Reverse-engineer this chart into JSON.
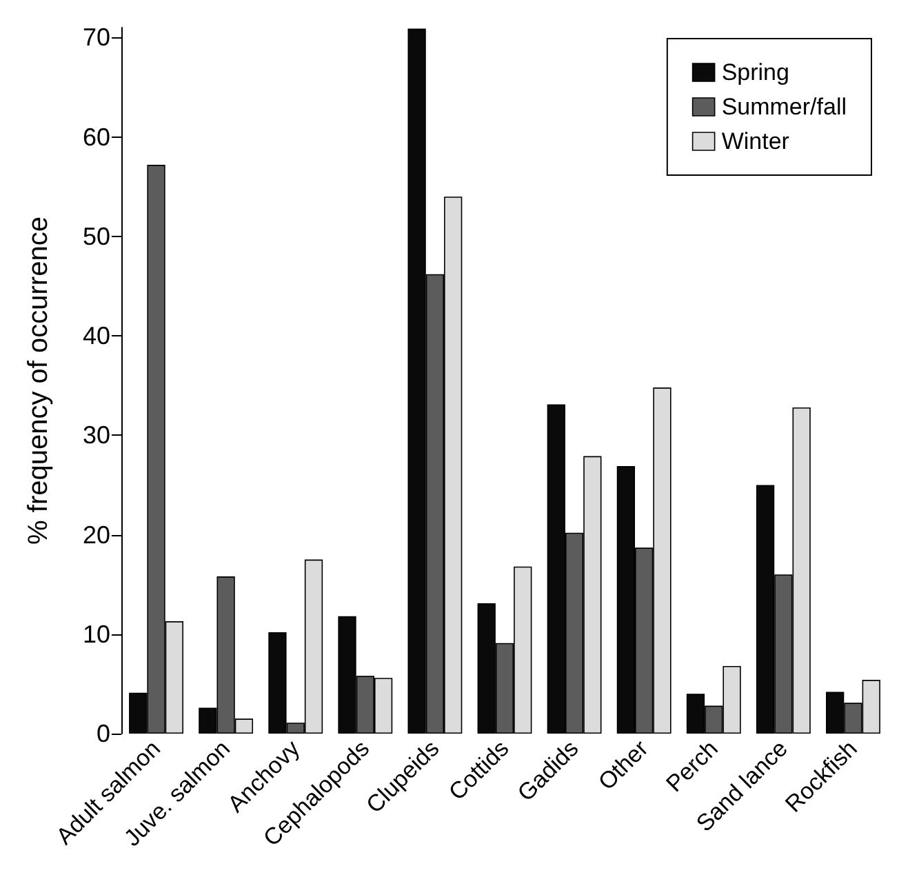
{
  "chart_data": {
    "type": "bar",
    "ylabel": "% frequency of occurrence",
    "categories": [
      "Adult salmon",
      "Juve. salmon",
      "Anchovy",
      "Cephalopods",
      "Clupeids",
      "Cottids",
      "Gadids",
      "Other",
      "Perch",
      "Sand lance",
      "Rockfish"
    ],
    "series": [
      {
        "name": "Spring",
        "color": "#0a0a0a",
        "values": [
          4.1,
          2.6,
          10.2,
          11.8,
          70.9,
          13.1,
          33.1,
          26.9,
          4.0,
          25.0,
          4.2
        ]
      },
      {
        "name": "Summer/fall",
        "color": "#5c5c5c",
        "values": [
          57.2,
          15.8,
          1.1,
          5.8,
          46.2,
          9.1,
          20.2,
          18.7,
          2.8,
          16.0,
          3.1
        ]
      },
      {
        "name": "Winter",
        "color": "#dcdcdc",
        "values": [
          11.3,
          1.5,
          17.5,
          5.6,
          54.0,
          16.8,
          27.9,
          34.8,
          6.8,
          32.8,
          5.4
        ]
      }
    ],
    "ylim": [
      0,
      71
    ],
    "yticks": [
      0,
      10,
      20,
      30,
      40,
      50,
      60,
      70
    ],
    "grid": false,
    "legend": "top right"
  }
}
